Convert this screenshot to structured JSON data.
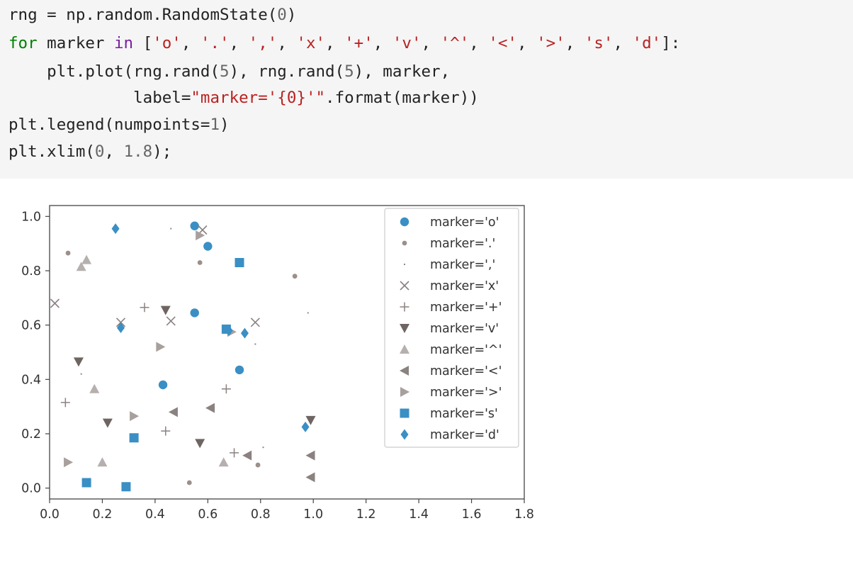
{
  "code": {
    "lines": [
      "rng = np.random.RandomState(0)",
      "for marker in ['o', '.', ',', 'x', '+', 'v', '^', '<', '>', 's', 'd']:",
      "    plt.plot(rng.rand(5), rng.rand(5), marker,",
      "             label=\"marker='{0}'\".format(marker))",
      "plt.legend(numpoints=1)",
      "plt.xlim(0, 1.8);"
    ]
  },
  "chart_data": {
    "type": "scatter",
    "xlim": [
      0,
      1.8
    ],
    "ylim": [
      0,
      1.0
    ],
    "x_ticks": [
      "0.0",
      "0.2",
      "0.4",
      "0.6",
      "0.8",
      "1.0",
      "1.2",
      "1.4",
      "1.6",
      "1.8"
    ],
    "y_ticks": [
      "0.0",
      "0.2",
      "0.4",
      "0.6",
      "0.8",
      "1.0"
    ],
    "legend_position": "top-right",
    "grid": false,
    "series": [
      {
        "name": "marker='o'",
        "marker": "o",
        "color": "#3a8fc4",
        "points": [
          [
            0.55,
            0.965
          ],
          [
            0.6,
            0.89
          ],
          [
            0.55,
            0.645
          ],
          [
            0.72,
            0.435
          ],
          [
            0.43,
            0.38
          ]
        ]
      },
      {
        "name": "marker='.'",
        "marker": ".",
        "color": "#9c8f8a",
        "points": [
          [
            0.07,
            0.865
          ],
          [
            0.57,
            0.83
          ],
          [
            0.93,
            0.78
          ],
          [
            0.79,
            0.085
          ],
          [
            0.53,
            0.02
          ]
        ]
      },
      {
        "name": "marker=','",
        "marker": ",",
        "color": "#8a8a8a",
        "points": [
          [
            0.46,
            0.955
          ],
          [
            0.98,
            0.645
          ],
          [
            0.78,
            0.53
          ],
          [
            0.12,
            0.42
          ],
          [
            0.81,
            0.15
          ]
        ]
      },
      {
        "name": "marker='x'",
        "marker": "x",
        "color": "#8a8280",
        "points": [
          [
            0.02,
            0.68
          ],
          [
            0.27,
            0.61
          ],
          [
            0.46,
            0.615
          ],
          [
            0.78,
            0.61
          ],
          [
            0.58,
            0.95
          ]
        ]
      },
      {
        "name": "marker='+'",
        "marker": "+",
        "color": "#8a8280",
        "points": [
          [
            0.36,
            0.665
          ],
          [
            0.06,
            0.315
          ],
          [
            0.67,
            0.365
          ],
          [
            0.44,
            0.21
          ],
          [
            0.7,
            0.13
          ]
        ]
      },
      {
        "name": "marker='v'",
        "marker": "v",
        "color": "#6e6562",
        "points": [
          [
            0.44,
            0.655
          ],
          [
            0.11,
            0.465
          ],
          [
            0.22,
            0.24
          ],
          [
            0.57,
            0.165
          ],
          [
            0.99,
            0.25
          ]
        ]
      },
      {
        "name": "marker='^'",
        "marker": "^",
        "color": "#b5b0ae",
        "points": [
          [
            0.12,
            0.815
          ],
          [
            0.14,
            0.84
          ],
          [
            0.17,
            0.365
          ],
          [
            0.2,
            0.095
          ],
          [
            0.66,
            0.095
          ]
        ]
      },
      {
        "name": "marker='<'",
        "marker": "<",
        "color": "#8a8280",
        "points": [
          [
            0.47,
            0.28
          ],
          [
            0.61,
            0.295
          ],
          [
            0.75,
            0.12
          ],
          [
            0.99,
            0.12
          ],
          [
            0.99,
            0.04
          ]
        ]
      },
      {
        "name": "marker='>'",
        "marker": ">",
        "color": "#a8a09d",
        "points": [
          [
            0.57,
            0.93
          ],
          [
            0.42,
            0.52
          ],
          [
            0.32,
            0.265
          ],
          [
            0.07,
            0.095
          ],
          [
            0.69,
            0.575
          ]
        ]
      },
      {
        "name": "marker='s'",
        "marker": "s",
        "color": "#3a8fc4",
        "points": [
          [
            0.72,
            0.83
          ],
          [
            0.67,
            0.585
          ],
          [
            0.32,
            0.185
          ],
          [
            0.14,
            0.02
          ],
          [
            0.29,
            0.005
          ]
        ]
      },
      {
        "name": "marker='d'",
        "marker": "d",
        "color": "#3a8fc4",
        "points": [
          [
            0.25,
            0.955
          ],
          [
            0.27,
            0.59
          ],
          [
            0.74,
            0.57
          ],
          [
            0.97,
            0.225
          ],
          [
            0.68,
            0.58
          ]
        ]
      }
    ]
  }
}
